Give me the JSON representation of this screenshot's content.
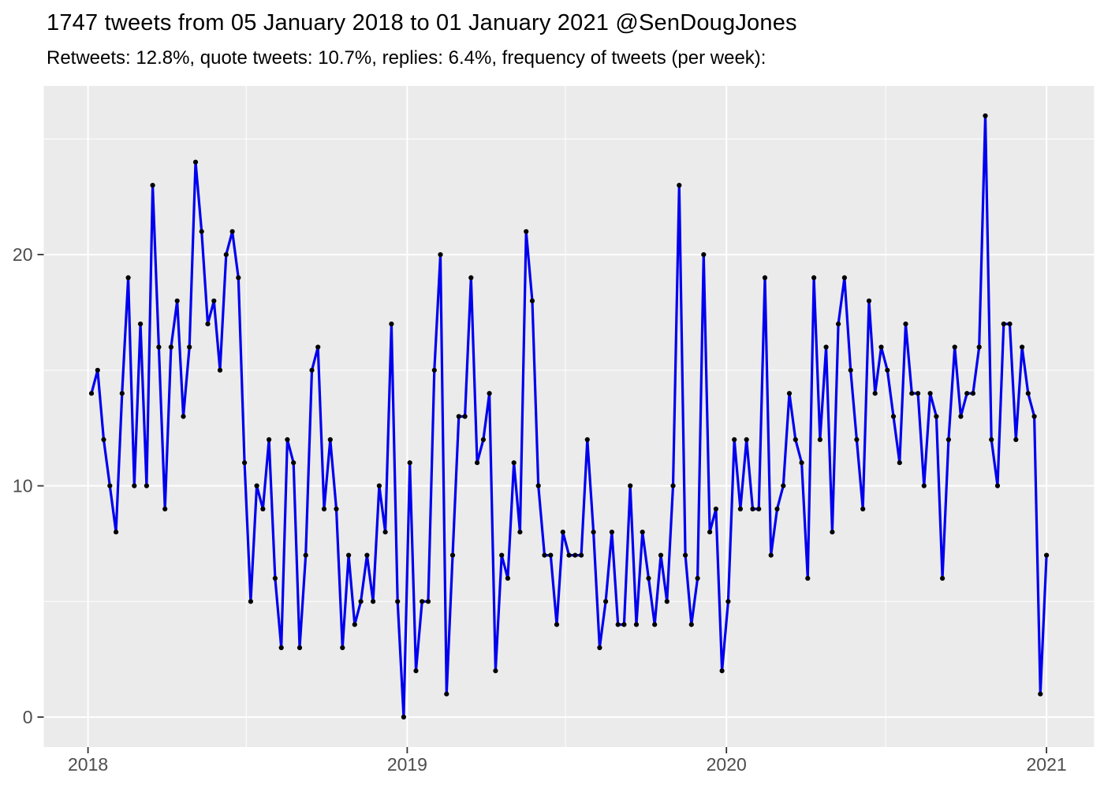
{
  "header": {
    "title": "1747 tweets from 05 January 2018 to 01 January 2021 @SenDougJones",
    "subtitle": "Retweets: 12.8%, quote tweets: 10.7%, replies: 6.4%, frequency of tweets (per week):"
  },
  "chart_data": {
    "type": "line",
    "title": "1747 tweets from 05 January 2018 to 01 January 2021 @SenDougJones",
    "subtitle": "Retweets: 12.8%, quote tweets: 10.7%, replies: 6.4%, frequency of tweets (per week):",
    "series": [
      {
        "name": "tweets-per-week",
        "start": "05 January 2018",
        "end": "01 January 2021",
        "interval": "week",
        "total": 1747,
        "values": [
          14,
          15,
          12,
          10,
          8,
          14,
          19,
          10,
          17,
          10,
          23,
          16,
          9,
          16,
          18,
          13,
          16,
          24,
          21,
          17,
          18,
          15,
          20,
          21,
          19,
          11,
          5,
          10,
          9,
          12,
          6,
          3,
          12,
          11,
          3,
          7,
          15,
          16,
          9,
          12,
          9,
          3,
          7,
          4,
          5,
          7,
          5,
          10,
          8,
          17,
          5,
          0,
          11,
          2,
          5,
          5,
          15,
          20,
          1,
          7,
          13,
          13,
          19,
          11,
          12,
          14,
          2,
          7,
          6,
          11,
          8,
          21,
          18,
          10,
          7,
          7,
          4,
          8,
          7,
          7,
          7,
          12,
          8,
          3,
          5,
          8,
          4,
          4,
          10,
          4,
          8,
          6,
          4,
          7,
          5,
          10,
          23,
          7,
          4,
          6,
          20,
          8,
          9,
          2,
          5,
          12,
          9,
          12,
          9,
          9,
          19,
          7,
          9,
          10,
          14,
          12,
          11,
          6,
          19,
          12,
          16,
          8,
          17,
          19,
          15,
          12,
          9,
          18,
          14,
          16,
          15,
          13,
          11,
          17,
          14,
          14,
          10,
          14,
          13,
          6,
          12,
          16,
          13,
          14,
          14,
          16,
          26,
          12,
          10,
          17,
          17,
          12,
          16,
          14,
          13,
          1,
          7
        ]
      }
    ],
    "x_axis": {
      "tick_labels": [
        "2018",
        "2019",
        "2020",
        "2021"
      ],
      "minor_gridlines": "mid-year"
    },
    "y_axis": {
      "tick_labels": [
        "0",
        "10",
        "20"
      ],
      "tick_values": [
        0,
        10,
        20
      ],
      "minor_tick_values": [
        5,
        15,
        25
      ],
      "range": [
        0,
        26
      ]
    },
    "grid": "on",
    "legend": "none",
    "colors": {
      "line": "#0000EE",
      "point": "#010101",
      "panel_background": "#EBEBEB",
      "gridline_major": "#FFFFFF",
      "gridline_minor": "#FFFFFF",
      "axis_text": "#4D4D4D",
      "tick_mark": "#333333",
      "title_text": "#000000"
    }
  }
}
